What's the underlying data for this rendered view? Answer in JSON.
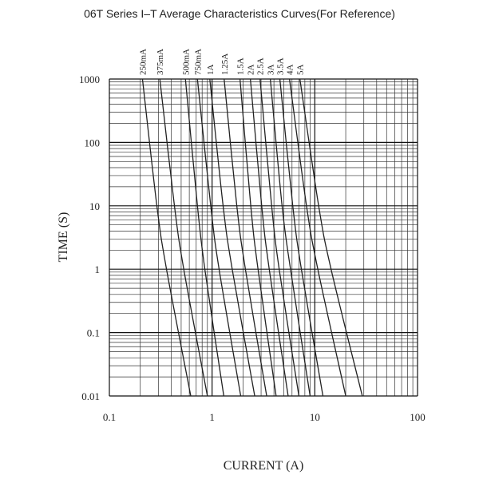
{
  "chart_data": {
    "type": "line",
    "title": "06T Series I–T Average Characteristics Curves(For Reference)",
    "x_label": "CURRENT (A)",
    "y_label": "TIME (S)",
    "xscale": "log",
    "yscale": "log",
    "grid": true,
    "xlim": [
      0.1,
      100
    ],
    "ylim": [
      0.01,
      1000
    ],
    "xticks": [
      0.1,
      1,
      10,
      100
    ],
    "yticks": [
      0.01,
      0.1,
      1,
      10,
      100,
      1000
    ],
    "series": [
      {
        "name": "250mA",
        "color": "#222222",
        "x": [
          0.21,
          0.29,
          0.36,
          0.62
        ],
        "values": [
          1000,
          10,
          1,
          0.01
        ]
      },
      {
        "name": "375mA",
        "color": "#222222",
        "x": [
          0.31,
          0.43,
          0.53,
          0.9
        ],
        "values": [
          1000,
          10,
          1,
          0.01
        ]
      },
      {
        "name": "500mA",
        "color": "#222222",
        "x": [
          0.55,
          0.72,
          0.85,
          1.3
        ],
        "values": [
          1000,
          10,
          1,
          0.01
        ]
      },
      {
        "name": "750mA",
        "color": "#222222",
        "x": [
          0.72,
          0.97,
          1.17,
          1.9
        ],
        "values": [
          1000,
          10,
          1,
          0.01
        ]
      },
      {
        "name": "1A",
        "color": "#222222",
        "x": [
          0.95,
          1.28,
          1.57,
          2.6
        ],
        "values": [
          1000,
          10,
          1,
          0.01
        ]
      },
      {
        "name": "1.25A",
        "color": "#222222",
        "x": [
          1.31,
          1.74,
          2.11,
          3.4
        ],
        "values": [
          1000,
          10,
          1,
          0.01
        ]
      },
      {
        "name": "1.5A",
        "color": "#222222",
        "x": [
          1.87,
          2.38,
          2.8,
          4.2
        ],
        "values": [
          1000,
          10,
          1,
          0.01
        ]
      },
      {
        "name": "2A",
        "color": "#222222",
        "x": [
          2.36,
          3.04,
          3.6,
          5.5
        ],
        "values": [
          1000,
          10,
          1,
          0.01
        ]
      },
      {
        "name": "2.5A",
        "color": "#222222",
        "x": [
          2.93,
          3.8,
          4.5,
          7
        ],
        "values": [
          1000,
          10,
          1,
          0.01
        ]
      },
      {
        "name": "3A",
        "color": "#222222",
        "x": [
          3.69,
          4.8,
          5.8,
          9
        ],
        "values": [
          1000,
          10,
          1,
          0.01
        ]
      },
      {
        "name": "3.5A",
        "color": "#222222",
        "x": [
          4.57,
          6.1,
          7.4,
          12
        ],
        "values": [
          1000,
          10,
          1,
          0.01
        ]
      },
      {
        "name": "4A",
        "color": "#222222",
        "x": [
          5.67,
          8.3,
          10.7,
          20
        ],
        "values": [
          1000,
          10,
          1,
          0.01
        ]
      },
      {
        "name": "5A",
        "color": "#222222",
        "x": [
          7.16,
          10.9,
          14.4,
          29
        ],
        "values": [
          1000,
          10,
          1,
          0.01
        ]
      }
    ]
  }
}
